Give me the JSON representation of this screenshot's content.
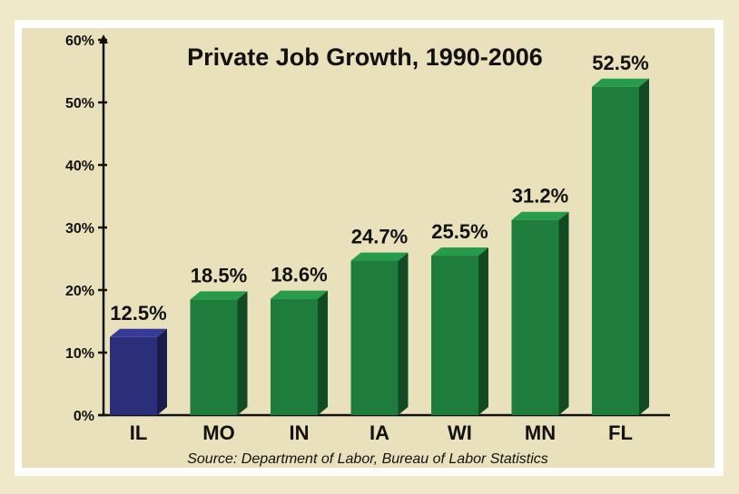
{
  "chart_data": {
    "type": "bar",
    "title": "Private Job Growth, 1990-2006",
    "source": "Source:  Department of Labor, Bureau of Labor Statistics",
    "categories": [
      "IL",
      "MO",
      "IN",
      "IA",
      "WI",
      "MN",
      "FL"
    ],
    "values": [
      12.5,
      18.5,
      18.6,
      24.7,
      25.5,
      31.2,
      52.5
    ],
    "value_labels": [
      "12.5%",
      "18.5%",
      "18.6%",
      "24.7%",
      "25.5%",
      "31.2%",
      "52.5%"
    ],
    "yticks": [
      0,
      10,
      20,
      30,
      40,
      50,
      60
    ],
    "ytick_labels": [
      "0%",
      "10%",
      "20%",
      "30%",
      "40%",
      "50%",
      "60%"
    ],
    "ylim": [
      0,
      60
    ],
    "xlabel": "",
    "ylabel": "",
    "grid": false,
    "style": "3d-bars",
    "bar_colors": [
      "#2b2f7a",
      "#1e7c3c",
      "#1e7c3c",
      "#1e7c3c",
      "#1e7c3c",
      "#1e7c3c",
      "#1e7c3c"
    ]
  },
  "colors": {
    "background": "#efe9c9",
    "frame": "#ffffff",
    "panel": "#e9e1bc",
    "highlight_bar": "#2b2f7a",
    "bar": "#1e7c3c"
  }
}
